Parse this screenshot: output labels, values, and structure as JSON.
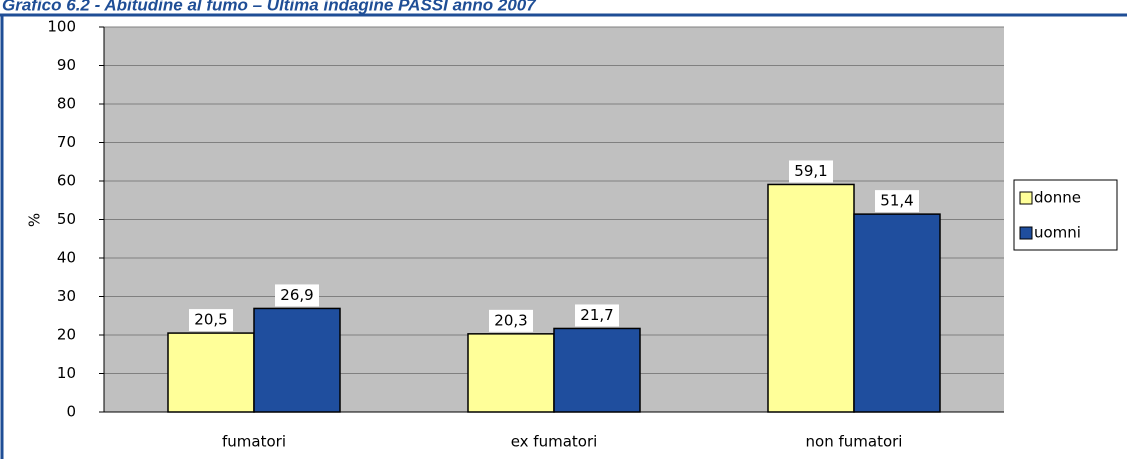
{
  "chart_data": {
    "type": "bar",
    "title": "Grafico 6.2 - Abitudine al fumo – Ultima indagine PASSI anno 2007",
    "y_label": "%",
    "categories": [
      "fumatori",
      "ex fumatori",
      "non fumatori"
    ],
    "series": [
      {
        "name": "donne",
        "color": "#ffff99",
        "values": [
          20.5,
          20.3,
          59.1
        ],
        "value_labels": [
          "20,5",
          "20,3",
          "59,1"
        ]
      },
      {
        "name": "uomni",
        "color": "#1f4e9e",
        "values": [
          26.9,
          21.7,
          51.4
        ],
        "value_labels": [
          "26,9",
          "21,7",
          "51,4"
        ]
      }
    ],
    "ylim": [
      0,
      100
    ],
    "yticks": [
      0,
      10,
      20,
      30,
      40,
      50,
      60,
      70,
      80,
      90,
      100
    ],
    "grid": true,
    "legend": "right",
    "plot_background": "#c0c0c0"
  }
}
